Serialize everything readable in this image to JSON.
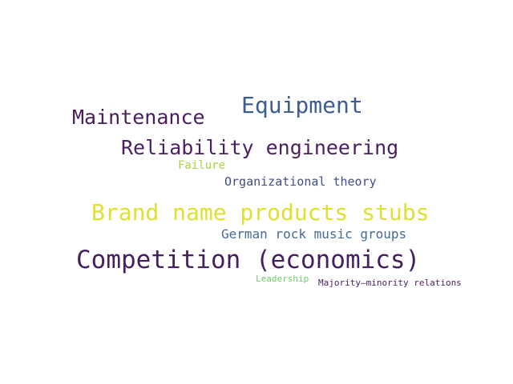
{
  "words": [
    {
      "text": "Equipment",
      "color": "#3b5d8f"
    },
    {
      "text": "Maintenance",
      "color": "#4a1e5e"
    },
    {
      "text": "Reliability engineering",
      "color": "#4b1f60"
    },
    {
      "text": "Failure",
      "color": "#a8d43f"
    },
    {
      "text": "Organizational theory",
      "color": "#3f4f85"
    },
    {
      "text": "Brand name products stubs",
      "color": "#dfe032"
    },
    {
      "text": "German rock music groups",
      "color": "#476a98"
    },
    {
      "text": "Competition (economics)",
      "color": "#45205f"
    },
    {
      "text": "Leadership",
      "color": "#6fcf6a"
    },
    {
      "text": "Majority–minority relations",
      "color": "#4a1e62"
    }
  ]
}
